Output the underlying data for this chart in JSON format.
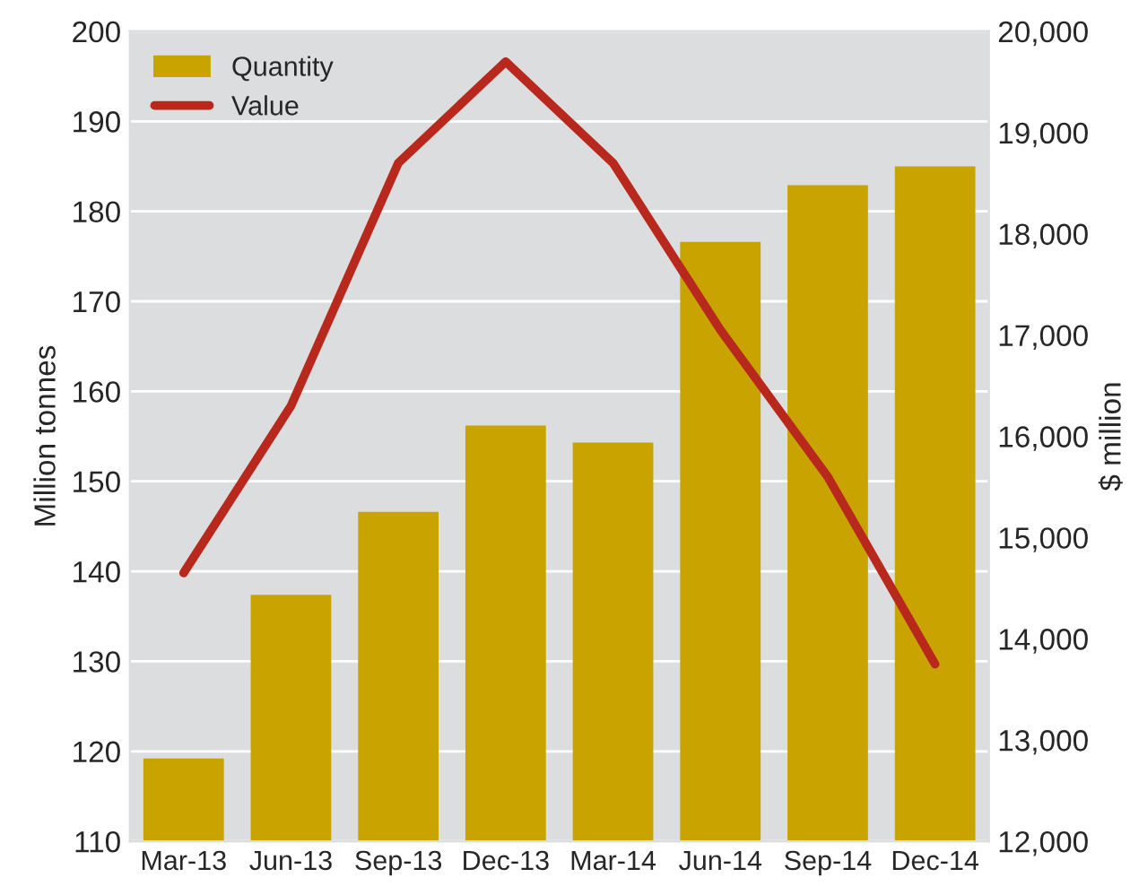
{
  "chart_data": {
    "type": "bar",
    "ylabel": "Million tonnes",
    "y2label": "$ million",
    "categories": [
      "Mar-13",
      "Jun-13",
      "Sep-13",
      "Dec-13",
      "Mar-14",
      "Jun-14",
      "Sep-14",
      "Dec-14"
    ],
    "series": [
      {
        "name": "Quantity",
        "color": "#c9a400",
        "values": [
          119.2,
          137.4,
          146.6,
          156.2,
          154.3,
          176.6,
          182.9,
          185
        ]
      },
      {
        "name": "Value",
        "type": "line",
        "axis": "y2",
        "color": "#b8281c",
        "values": [
          14650,
          16300,
          18700,
          19700,
          18700,
          17050,
          15600,
          13750
        ]
      }
    ],
    "ylim": [
      110,
      200
    ],
    "yticks": [
      110,
      120,
      130,
      140,
      150,
      160,
      170,
      180,
      190,
      200
    ],
    "y2lim": [
      12000,
      20000
    ],
    "y2ticks": [
      {
        "value": 12000,
        "label": "12,000"
      },
      {
        "value": 13000,
        "label": "13,000"
      },
      {
        "value": 14000,
        "label": "14,000"
      },
      {
        "value": 15000,
        "label": "15,000"
      },
      {
        "value": 16000,
        "label": "16,000"
      },
      {
        "value": 17000,
        "label": "17,000"
      },
      {
        "value": 18000,
        "label": "18,000"
      },
      {
        "value": 19000,
        "label": "19,000"
      },
      {
        "value": 20000,
        "label": "20,000"
      }
    ],
    "grid": "y",
    "legend": "top left",
    "line_style": "solid"
  }
}
